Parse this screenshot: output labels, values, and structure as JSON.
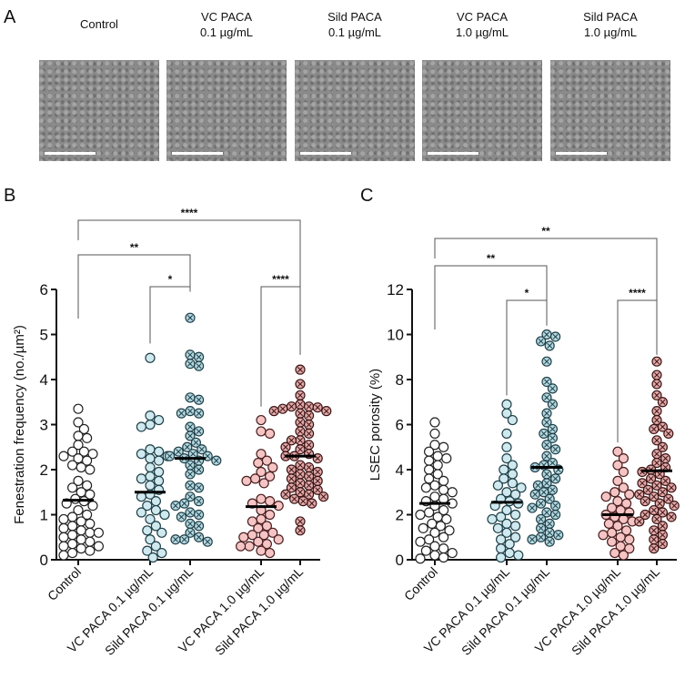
{
  "panels": {
    "a": "A",
    "b": "B",
    "c": "C"
  },
  "images": [
    {
      "line1": "Control",
      "line2": ""
    },
    {
      "line1": "VC PACA",
      "line2": "0.1 µg/mL"
    },
    {
      "line1": "Sild PACA",
      "line2": "0.1 µg/mL"
    },
    {
      "line1": "VC PACA",
      "line2": "1.0 µg/mL"
    },
    {
      "line1": "Sild PACA",
      "line2": "1.0 µg/mL"
    }
  ],
  "colors": {
    "control": "#ffffff",
    "vc01": "#cfe9ef",
    "sild01": "#b5d8e0",
    "vc10": "#f5c4c4",
    "sild10": "#e3a9a9"
  },
  "chart_data": [
    {
      "type": "scatter",
      "ylabel": "Fenestration frequency (no./µm²)",
      "ylim": [
        0,
        6
      ],
      "yticks": [
        0,
        1,
        2,
        3,
        4,
        5,
        6
      ],
      "categories": [
        "Control",
        "VC PACA 0.1 µg/mL",
        "Sild PACA 0.1 µg/mL",
        "VC PACA 1.0 µg/mL",
        "Sild PACA 1.0 µg/mL"
      ],
      "means": [
        1.32,
        1.5,
        2.25,
        1.18,
        2.3
      ],
      "series": [
        [
          3.35,
          3.05,
          2.9,
          2.75,
          2.7,
          2.55,
          2.4,
          2.4,
          2.3,
          2.25,
          2.2,
          2.05,
          2.0,
          1.75,
          1.65,
          1.6,
          1.5,
          1.45,
          1.35,
          1.3,
          1.2,
          1.1,
          0.95,
          0.9,
          0.85,
          0.75,
          0.7,
          0.65,
          0.6,
          0.55,
          0.5,
          0.45,
          0.4,
          0.35,
          0.3,
          0.25,
          0.2,
          0.15,
          0.1,
          0.3,
          0.6,
          0.8,
          1.0,
          2.1,
          2.35,
          1.25
        ],
        [
          4.48,
          3.2,
          3.1,
          3.0,
          2.95,
          2.45,
          2.4,
          2.35,
          2.3,
          2.25,
          2.05,
          1.95,
          1.85,
          1.75,
          1.65,
          1.55,
          1.45,
          1.4,
          1.3,
          1.2,
          1.1,
          1.05,
          1.0,
          0.9,
          0.75,
          0.65,
          0.6,
          0.45,
          0.3,
          0.2,
          0.15,
          0.05,
          1.8,
          2.2
        ],
        [
          5.37,
          4.55,
          4.5,
          4.35,
          4.3,
          3.6,
          3.55,
          3.3,
          3.25,
          3.25,
          2.95,
          2.85,
          2.75,
          2.6,
          2.5,
          2.45,
          2.4,
          2.35,
          2.3,
          2.25,
          2.2,
          2.2,
          2.1,
          2.0,
          1.65,
          1.6,
          1.4,
          1.3,
          1.25,
          1.2,
          1.05,
          1.0,
          0.95,
          0.8,
          0.75,
          0.6,
          0.5,
          0.45,
          0.4,
          0.45,
          2.3,
          1.9
        ],
        [
          3.1,
          2.85,
          2.8,
          2.35,
          2.2,
          2.15,
          2.05,
          1.95,
          1.85,
          1.75,
          1.7,
          1.35,
          1.3,
          1.25,
          1.2,
          1.1,
          1.0,
          0.9,
          0.85,
          0.75,
          0.7,
          0.6,
          0.55,
          0.5,
          0.45,
          0.4,
          0.35,
          0.3,
          0.3,
          0.2,
          0.15,
          0.55,
          1.8
        ],
        [
          4.22,
          3.9,
          3.65,
          3.45,
          3.4,
          3.35,
          3.3,
          3.3,
          3.25,
          3.2,
          3.0,
          2.85,
          2.8,
          2.65,
          2.55,
          2.5,
          2.45,
          2.35,
          2.3,
          2.3,
          2.25,
          2.1,
          2.05,
          1.95,
          1.85,
          1.8,
          1.75,
          1.7,
          1.65,
          1.6,
          1.55,
          1.5,
          1.45,
          1.4,
          1.35,
          1.3,
          1.25,
          0.85,
          0.65,
          2.0,
          1.9,
          2.65,
          3.05,
          1.45,
          3.4,
          3.38
        ]
      ],
      "comparisons": [
        {
          "from": 0,
          "to": 4,
          "label": "****",
          "level": 3
        },
        {
          "from": 0,
          "to": 2,
          "label": "**",
          "level": 2
        },
        {
          "from": 1,
          "to": 2,
          "label": "*",
          "level": 1
        },
        {
          "from": 3,
          "to": 4,
          "label": "****",
          "level": 1
        }
      ]
    },
    {
      "type": "scatter",
      "ylabel": "LSEC porosity (%)",
      "ylim": [
        0,
        12
      ],
      "yticks": [
        0,
        2,
        4,
        6,
        8,
        10,
        12
      ],
      "categories": [
        "Control",
        "VC PACA 0.1 µg/mL",
        "Sild PACA 0.1 µg/mL",
        "VC PACA 1.0 µg/mL",
        "Sild PACA 1.0 µg/mL"
      ],
      "means": [
        2.5,
        2.55,
        4.1,
        2.0,
        3.95
      ],
      "series": [
        [
          6.1,
          5.6,
          5.1,
          5.0,
          4.8,
          4.6,
          4.4,
          4.2,
          4.0,
          3.8,
          3.6,
          3.5,
          3.3,
          3.1,
          3.0,
          2.8,
          2.6,
          2.5,
          2.4,
          2.2,
          2.0,
          1.9,
          1.8,
          1.6,
          1.5,
          1.4,
          1.2,
          1.0,
          0.9,
          0.8,
          0.6,
          0.5,
          0.4,
          0.3,
          0.2,
          0.1,
          0.05,
          2.7,
          3.2,
          1.3,
          4.5,
          2.1
        ],
        [
          6.9,
          6.5,
          6.2,
          5.6,
          5.0,
          4.5,
          4.2,
          4.0,
          3.8,
          3.6,
          3.4,
          3.2,
          3.0,
          2.9,
          2.7,
          2.5,
          2.4,
          2.2,
          2.0,
          1.9,
          1.8,
          1.6,
          1.4,
          1.2,
          1.0,
          0.9,
          0.7,
          0.5,
          0.3,
          0.2,
          0.1,
          3.3,
          2.6,
          1.5
        ],
        [
          10.0,
          9.9,
          9.7,
          9.5,
          8.8,
          7.9,
          7.6,
          7.2,
          6.9,
          6.5,
          6.1,
          5.8,
          5.4,
          5.1,
          4.9,
          4.6,
          4.3,
          4.1,
          4.0,
          3.8,
          3.6,
          3.4,
          3.3,
          3.1,
          2.9,
          2.7,
          2.5,
          2.3,
          2.1,
          2.0,
          1.8,
          1.6,
          1.4,
          1.2,
          1.1,
          1.0,
          0.9,
          0.8,
          4.2,
          3.0,
          5.6,
          2.4
        ],
        [
          4.8,
          4.5,
          4.2,
          3.9,
          3.5,
          3.2,
          3.0,
          2.8,
          2.6,
          2.5,
          2.3,
          2.1,
          2.0,
          1.9,
          1.8,
          1.6,
          1.5,
          1.3,
          1.2,
          1.1,
          1.0,
          0.9,
          0.8,
          0.6,
          0.5,
          0.3,
          0.2,
          2.2,
          1.7,
          2.9
        ],
        [
          8.8,
          8.2,
          7.8,
          7.3,
          7.0,
          6.6,
          6.2,
          5.9,
          5.6,
          5.3,
          5.0,
          4.7,
          4.5,
          4.3,
          4.1,
          3.9,
          3.8,
          3.6,
          3.5,
          3.3,
          3.2,
          3.0,
          2.9,
          2.8,
          2.6,
          2.5,
          2.4,
          2.2,
          2.1,
          2.0,
          1.8,
          1.7,
          1.5,
          1.3,
          1.1,
          0.9,
          0.7,
          0.5,
          3.1,
          2.7,
          4.0,
          3.4,
          5.8,
          1.9
        ]
      ],
      "comparisons": [
        {
          "from": 0,
          "to": 4,
          "label": "**",
          "level": 3
        },
        {
          "from": 0,
          "to": 2,
          "label": "**",
          "level": 2
        },
        {
          "from": 1,
          "to": 2,
          "label": "*",
          "level": 1
        },
        {
          "from": 3,
          "to": 4,
          "label": "****",
          "level": 1
        }
      ]
    }
  ]
}
